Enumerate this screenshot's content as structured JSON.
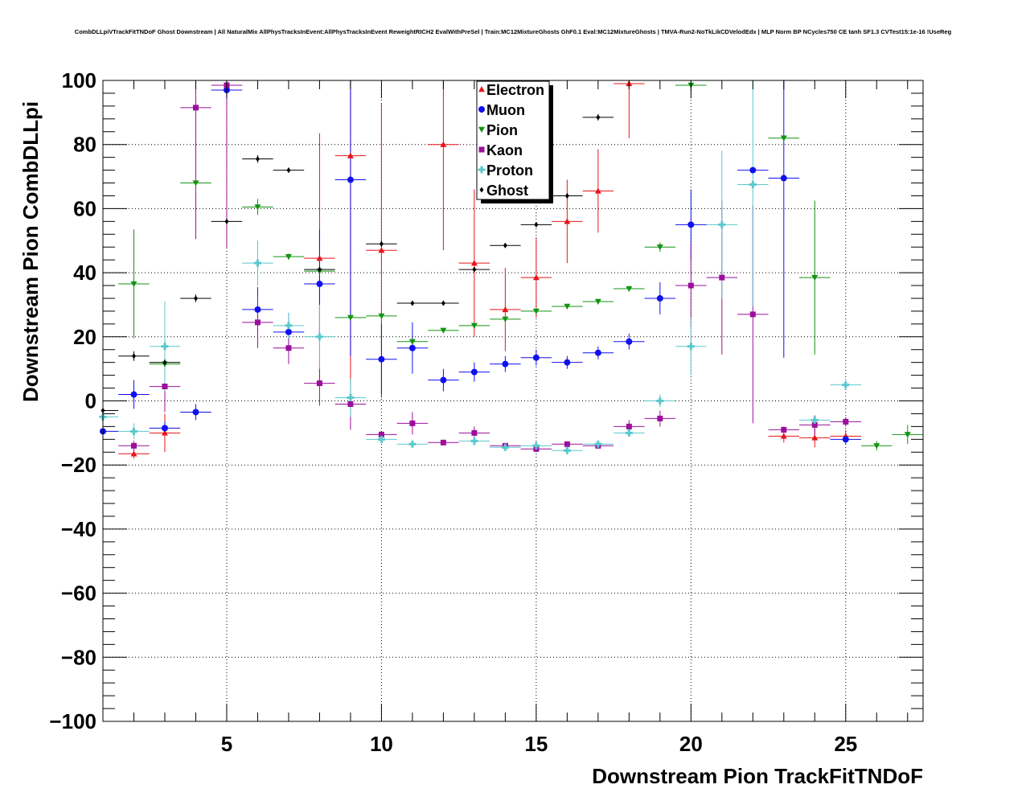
{
  "chart_data": {
    "type": "scatter",
    "title": "CombDLLpiVTrackFitTNDoF Ghost Downstream | All NaturalMix AllPhysTracksInEvent:AllPhysTracksInEvent ReweightRICH2 EvalWithPreSel | Train:MC12MixtureGhosts GhF0.1 Eval:MC12MixtureGhosts | TMVA-Run2-NoTkLikCDVelodEdx | MLP Norm BP NCycles750 CE tanh SF1.3 CVTest15:1e-16 !UseReg",
    "xlabel": "Downstream Pion TrackFitTNDoF",
    "ylabel": "Downstream Pion CombDLLpi",
    "xlim": [
      1,
      27.5
    ],
    "ylim": [
      -100,
      100
    ],
    "x_ticks": [
      "5",
      "10",
      "15",
      "20",
      "25"
    ],
    "y_ticks": [
      "−100",
      "−80",
      "−60",
      "−40",
      "−20",
      "0",
      "20",
      "40",
      "60",
      "80",
      "100"
    ],
    "grid": true,
    "legend_position": "top-center",
    "series": [
      {
        "name": "Electron",
        "color": "#e8141a",
        "marker": "triangle-up",
        "x": [
          2,
          3,
          8,
          9,
          10,
          12,
          13,
          14,
          15,
          16,
          17,
          18,
          23,
          24,
          25
        ],
        "y": [
          -16.5,
          -10,
          44.5,
          76.5,
          47,
          80,
          43,
          28.5,
          38.5,
          56,
          65.5,
          99,
          -11,
          -11.5,
          -11
        ],
        "err": [
          1.5,
          6,
          39,
          70,
          46,
          33,
          23,
          13,
          12.5,
          13,
          13,
          17,
          2,
          3,
          2
        ]
      },
      {
        "name": "Muon",
        "color": "#1010f0",
        "marker": "circle",
        "x": [
          1,
          2,
          3,
          4,
          5,
          6,
          7,
          8,
          9,
          10,
          11,
          12,
          13,
          14,
          15,
          16,
          17,
          18,
          19,
          20,
          22,
          23,
          25
        ],
        "y": [
          -9.5,
          2,
          -8.5,
          -3.5,
          97,
          28.5,
          21.5,
          36.5,
          69,
          13,
          16.5,
          6.5,
          9,
          11.5,
          13.5,
          12,
          15,
          18.5,
          32,
          55,
          72,
          69.5,
          -12
        ],
        "err": [
          0.8,
          4.5,
          2,
          2.5,
          3,
          7,
          6,
          17,
          55,
          11,
          8,
          3.5,
          3,
          2.5,
          2.5,
          2,
          2,
          2.5,
          5,
          11,
          0.6,
          56,
          1.5
        ]
      },
      {
        "name": "Pion",
        "color": "#139413",
        "marker": "triangle-down",
        "x": [
          2,
          3,
          4,
          6,
          7,
          8,
          9,
          10,
          11,
          12,
          13,
          14,
          15,
          16,
          17,
          18,
          19,
          20,
          23,
          24,
          26,
          27
        ],
        "y": [
          36.5,
          11.5,
          68,
          60.5,
          45,
          40.5,
          26,
          26.5,
          18.5,
          22,
          23.5,
          25.5,
          28,
          29.5,
          31,
          35,
          48,
          98.5,
          82,
          38.5,
          -14,
          -10.5
        ],
        "err": [
          17,
          1,
          1,
          2.5,
          1,
          1,
          0.5,
          0.5,
          1,
          0.8,
          0.8,
          0.8,
          0.8,
          0.8,
          0.8,
          0.8,
          1.5,
          2,
          1,
          24,
          1.5,
          3
        ]
      },
      {
        "name": "Kaon",
        "color": "#9c0f9c",
        "marker": "square",
        "x": [
          2,
          3,
          4,
          5,
          6,
          7,
          8,
          9,
          10,
          11,
          12,
          13,
          14,
          15,
          16,
          17,
          18,
          19,
          20,
          21,
          22,
          23,
          24,
          25
        ],
        "y": [
          -14,
          4.5,
          91.5,
          98.5,
          24.5,
          16.5,
          5.5,
          -1,
          -10.5,
          -7,
          -13,
          -10,
          -14,
          -15,
          -13.5,
          -14,
          -8,
          -5.5,
          36,
          38.5,
          27,
          -9,
          -7.5,
          -6.5
        ],
        "err": [
          1.5,
          8,
          41,
          51,
          8,
          5,
          7,
          8,
          1,
          3.5,
          0.8,
          2,
          0.8,
          1,
          0.8,
          0.8,
          2,
          2.5,
          13,
          24,
          34,
          1,
          3,
          1.5
        ]
      },
      {
        "name": "Proton",
        "color": "#5bc8cc",
        "marker": "cross",
        "x": [
          1,
          2,
          3,
          6,
          7,
          8,
          9,
          10,
          11,
          13,
          14,
          15,
          16,
          17,
          18,
          19,
          20,
          21,
          22,
          24,
          25
        ],
        "y": [
          -5,
          -9.5,
          17,
          43,
          23.5,
          20,
          1,
          -12,
          -13.5,
          -12.5,
          -14.5,
          -14,
          -15.5,
          -13.5,
          -10,
          0,
          17,
          55,
          67.5,
          -6,
          5
        ],
        "err": [
          1,
          2.5,
          14,
          7,
          4,
          10,
          6,
          1,
          1,
          1.5,
          1,
          1,
          1,
          1,
          1,
          2,
          9,
          23,
          38,
          1,
          1
        ]
      },
      {
        "name": "Ghost",
        "color": "#000000",
        "marker": "diamond",
        "x": [
          1,
          2,
          3,
          4,
          5,
          6,
          7,
          8,
          10,
          11,
          12,
          13,
          14,
          15,
          16,
          17
        ],
        "y": [
          -3,
          14,
          12,
          32,
          56,
          75.5,
          72,
          41,
          49,
          30.5,
          30.5,
          41,
          48.5,
          55,
          64,
          88.5
        ],
        "err": [
          2,
          1.5,
          1,
          1.2,
          0.8,
          1.2,
          0.8,
          0.8,
          1,
          0.6,
          0.6,
          0.8,
          0.8,
          0.8,
          0.8,
          1
        ]
      }
    ]
  }
}
